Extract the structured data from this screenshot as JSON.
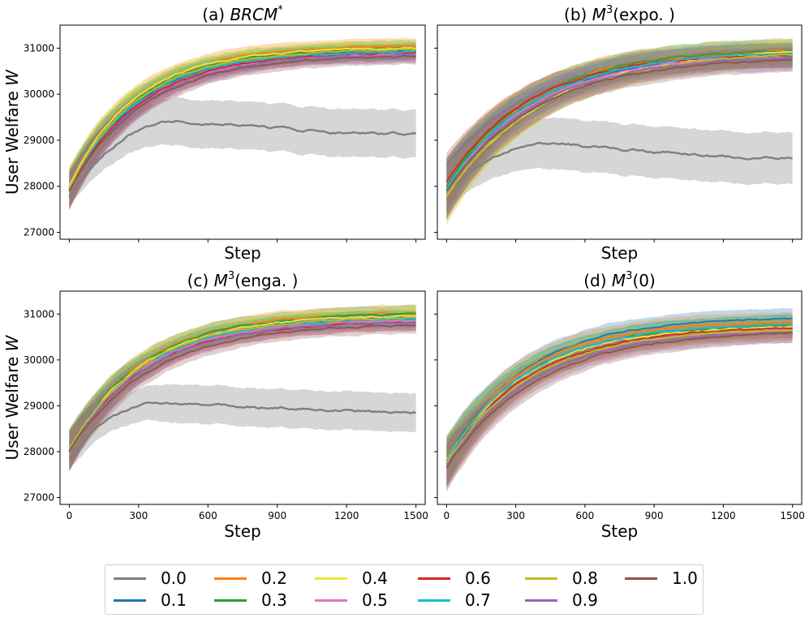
{
  "legend": [
    {
      "label": "0.0",
      "color": "#7f7f7f"
    },
    {
      "label": "0.1",
      "color": "#1f77b4"
    },
    {
      "label": "0.2",
      "color": "#ff7f0e"
    },
    {
      "label": "0.3",
      "color": "#2ca02c"
    },
    {
      "label": "0.4",
      "color": "#f0e442"
    },
    {
      "label": "0.5",
      "color": "#e377c2"
    },
    {
      "label": "0.6",
      "color": "#d62728"
    },
    {
      "label": "0.7",
      "color": "#17becf"
    },
    {
      "label": "0.8",
      "color": "#bcbd22"
    },
    {
      "label": "0.9",
      "color": "#9467bd"
    },
    {
      "label": "1.0",
      "color": "#8c564b"
    }
  ],
  "chart_data": [
    {
      "type": "line",
      "title_prefix": "(a) ",
      "title_main": "BRCM",
      "title_sup": "*",
      "title_suffix": "",
      "xlabel": "Step",
      "ylabel": "User Welfare W",
      "xlim": [
        -40,
        1540
      ],
      "ylim": [
        26850,
        31500
      ],
      "xticks": [
        0,
        300,
        600,
        900,
        1200,
        1500
      ],
      "yticks": [
        27000,
        28000,
        29000,
        30000,
        31000
      ],
      "show_xticklabels": false,
      "show_yticklabels": true,
      "series": [
        {
          "name": "0.0",
          "start": 27750,
          "peak": 29420,
          "peak_step": 480,
          "end": 29130,
          "band": 520,
          "band_start": 220
        },
        {
          "name": "0.1",
          "start": 27950,
          "plateau": 30950,
          "tau": 300,
          "band": 170
        },
        {
          "name": "0.2",
          "start": 28000,
          "plateau": 31050,
          "tau": 290,
          "band": 180
        },
        {
          "name": "0.3",
          "start": 27950,
          "plateau": 31000,
          "tau": 290,
          "band": 170
        },
        {
          "name": "0.4",
          "start": 28000,
          "plateau": 31020,
          "tau": 285,
          "band": 170
        },
        {
          "name": "0.5",
          "start": 27900,
          "plateau": 30900,
          "tau": 310,
          "band": 170
        },
        {
          "name": "0.6",
          "start": 27900,
          "plateau": 30920,
          "tau": 310,
          "band": 170
        },
        {
          "name": "0.7",
          "start": 27950,
          "plateau": 30950,
          "tau": 295,
          "band": 170
        },
        {
          "name": "0.8",
          "start": 27950,
          "plateau": 30980,
          "tau": 290,
          "band": 170
        },
        {
          "name": "0.9",
          "start": 27900,
          "plateau": 30880,
          "tau": 310,
          "band": 170
        },
        {
          "name": "1.0",
          "start": 27900,
          "plateau": 30850,
          "tau": 320,
          "band": 170
        }
      ]
    },
    {
      "type": "line",
      "title_prefix": "(b) ",
      "title_main": "M",
      "title_sup": "3",
      "title_suffix": "(expo. )",
      "xlabel": "Step",
      "ylabel": "",
      "xlim": [
        -40,
        1540
      ],
      "ylim": [
        26850,
        31500
      ],
      "xticks": [
        0,
        300,
        600,
        900,
        1200,
        1500
      ],
      "yticks": [
        27000,
        28000,
        29000,
        30000,
        31000
      ],
      "show_xticklabels": false,
      "show_yticklabels": false,
      "series": [
        {
          "name": "0.0",
          "start": 27800,
          "peak": 28950,
          "peak_step": 470,
          "end": 28600,
          "band": 560,
          "band_start": 350
        },
        {
          "name": "0.1",
          "start": 28000,
          "plateau": 30900,
          "tau": 380,
          "band": 260
        },
        {
          "name": "0.2",
          "start": 28000,
          "plateau": 31000,
          "tau": 370,
          "band": 260
        },
        {
          "name": "0.3",
          "start": 28000,
          "plateau": 31000,
          "tau": 370,
          "band": 260
        },
        {
          "name": "0.4",
          "start": 27800,
          "plateau": 31000,
          "tau": 430,
          "band": 260
        },
        {
          "name": "0.5",
          "start": 27900,
          "plateau": 30900,
          "tau": 380,
          "band": 260
        },
        {
          "name": "0.6",
          "start": 28100,
          "plateau": 30900,
          "tau": 360,
          "band": 260
        },
        {
          "name": "0.7",
          "start": 27950,
          "plateau": 30950,
          "tau": 380,
          "band": 260
        },
        {
          "name": "0.8",
          "start": 27800,
          "plateau": 30950,
          "tau": 420,
          "band": 260
        },
        {
          "name": "0.9",
          "start": 27900,
          "plateau": 30850,
          "tau": 390,
          "band": 260
        },
        {
          "name": "1.0",
          "start": 27900,
          "plateau": 30800,
          "tau": 390,
          "band": 260
        }
      ]
    },
    {
      "type": "line",
      "title_prefix": "(c) ",
      "title_main": "M",
      "title_sup": "3",
      "title_suffix": "(enga. )",
      "xlabel": "Step",
      "ylabel": "User Welfare W",
      "xlim": [
        -40,
        1540
      ],
      "ylim": [
        26850,
        31500
      ],
      "xticks": [
        0,
        300,
        600,
        900,
        1200,
        1500
      ],
      "yticks": [
        27000,
        28000,
        29000,
        30000,
        31000
      ],
      "show_xticklabels": true,
      "show_yticklabels": true,
      "series": [
        {
          "name": "0.0",
          "start": 27850,
          "peak": 29080,
          "peak_step": 420,
          "end": 28870,
          "band": 420,
          "band_start": 230
        },
        {
          "name": "0.1",
          "start": 28050,
          "plateau": 30950,
          "tau": 320,
          "band": 180
        },
        {
          "name": "0.2",
          "start": 28050,
          "plateau": 31050,
          "tau": 320,
          "band": 180
        },
        {
          "name": "0.3",
          "start": 28050,
          "plateau": 31030,
          "tau": 320,
          "band": 180
        },
        {
          "name": "0.4",
          "start": 28050,
          "plateau": 30980,
          "tau": 320,
          "band": 180
        },
        {
          "name": "0.5",
          "start": 28000,
          "plateau": 30900,
          "tau": 330,
          "band": 180
        },
        {
          "name": "0.6",
          "start": 28000,
          "plateau": 30850,
          "tau": 330,
          "band": 180
        },
        {
          "name": "0.7",
          "start": 28050,
          "plateau": 30920,
          "tau": 320,
          "band": 180
        },
        {
          "name": "0.8",
          "start": 28050,
          "plateau": 30950,
          "tau": 320,
          "band": 180
        },
        {
          "name": "0.9",
          "start": 28000,
          "plateau": 30850,
          "tau": 330,
          "band": 180
        },
        {
          "name": "1.0",
          "start": 28000,
          "plateau": 30800,
          "tau": 350,
          "band": 180
        }
      ]
    },
    {
      "type": "line",
      "title_prefix": "(d) ",
      "title_main": "M",
      "title_sup": "3",
      "title_suffix": "(0)",
      "xlabel": "Step",
      "ylabel": "",
      "xlim": [
        -40,
        1540
      ],
      "ylim": [
        26850,
        31500
      ],
      "xticks": [
        0,
        300,
        600,
        900,
        1200,
        1500
      ],
      "yticks": [
        27000,
        28000,
        29000,
        30000,
        31000
      ],
      "show_xticklabels": true,
      "show_yticklabels": false,
      "series": [
        {
          "name": "0.1",
          "start": 27800,
          "plateau": 30950,
          "tau": 340,
          "band": 220
        },
        {
          "name": "0.2",
          "start": 27800,
          "plateau": 30850,
          "tau": 330,
          "band": 220
        },
        {
          "name": "0.3",
          "start": 27800,
          "plateau": 30800,
          "tau": 340,
          "band": 220
        },
        {
          "name": "0.4",
          "start": 27800,
          "plateau": 30750,
          "tau": 340,
          "band": 220
        },
        {
          "name": "0.5",
          "start": 27750,
          "plateau": 30700,
          "tau": 360,
          "band": 220
        },
        {
          "name": "0.6",
          "start": 27750,
          "plateau": 30750,
          "tau": 360,
          "band": 220
        },
        {
          "name": "0.7",
          "start": 27800,
          "plateau": 30800,
          "tau": 340,
          "band": 220
        },
        {
          "name": "0.8",
          "start": 27750,
          "plateau": 30700,
          "tau": 360,
          "band": 220
        },
        {
          "name": "0.9",
          "start": 27700,
          "plateau": 30650,
          "tau": 370,
          "band": 220
        },
        {
          "name": "1.0",
          "start": 27650,
          "plateau": 30650,
          "tau": 390,
          "band": 220
        }
      ]
    }
  ]
}
